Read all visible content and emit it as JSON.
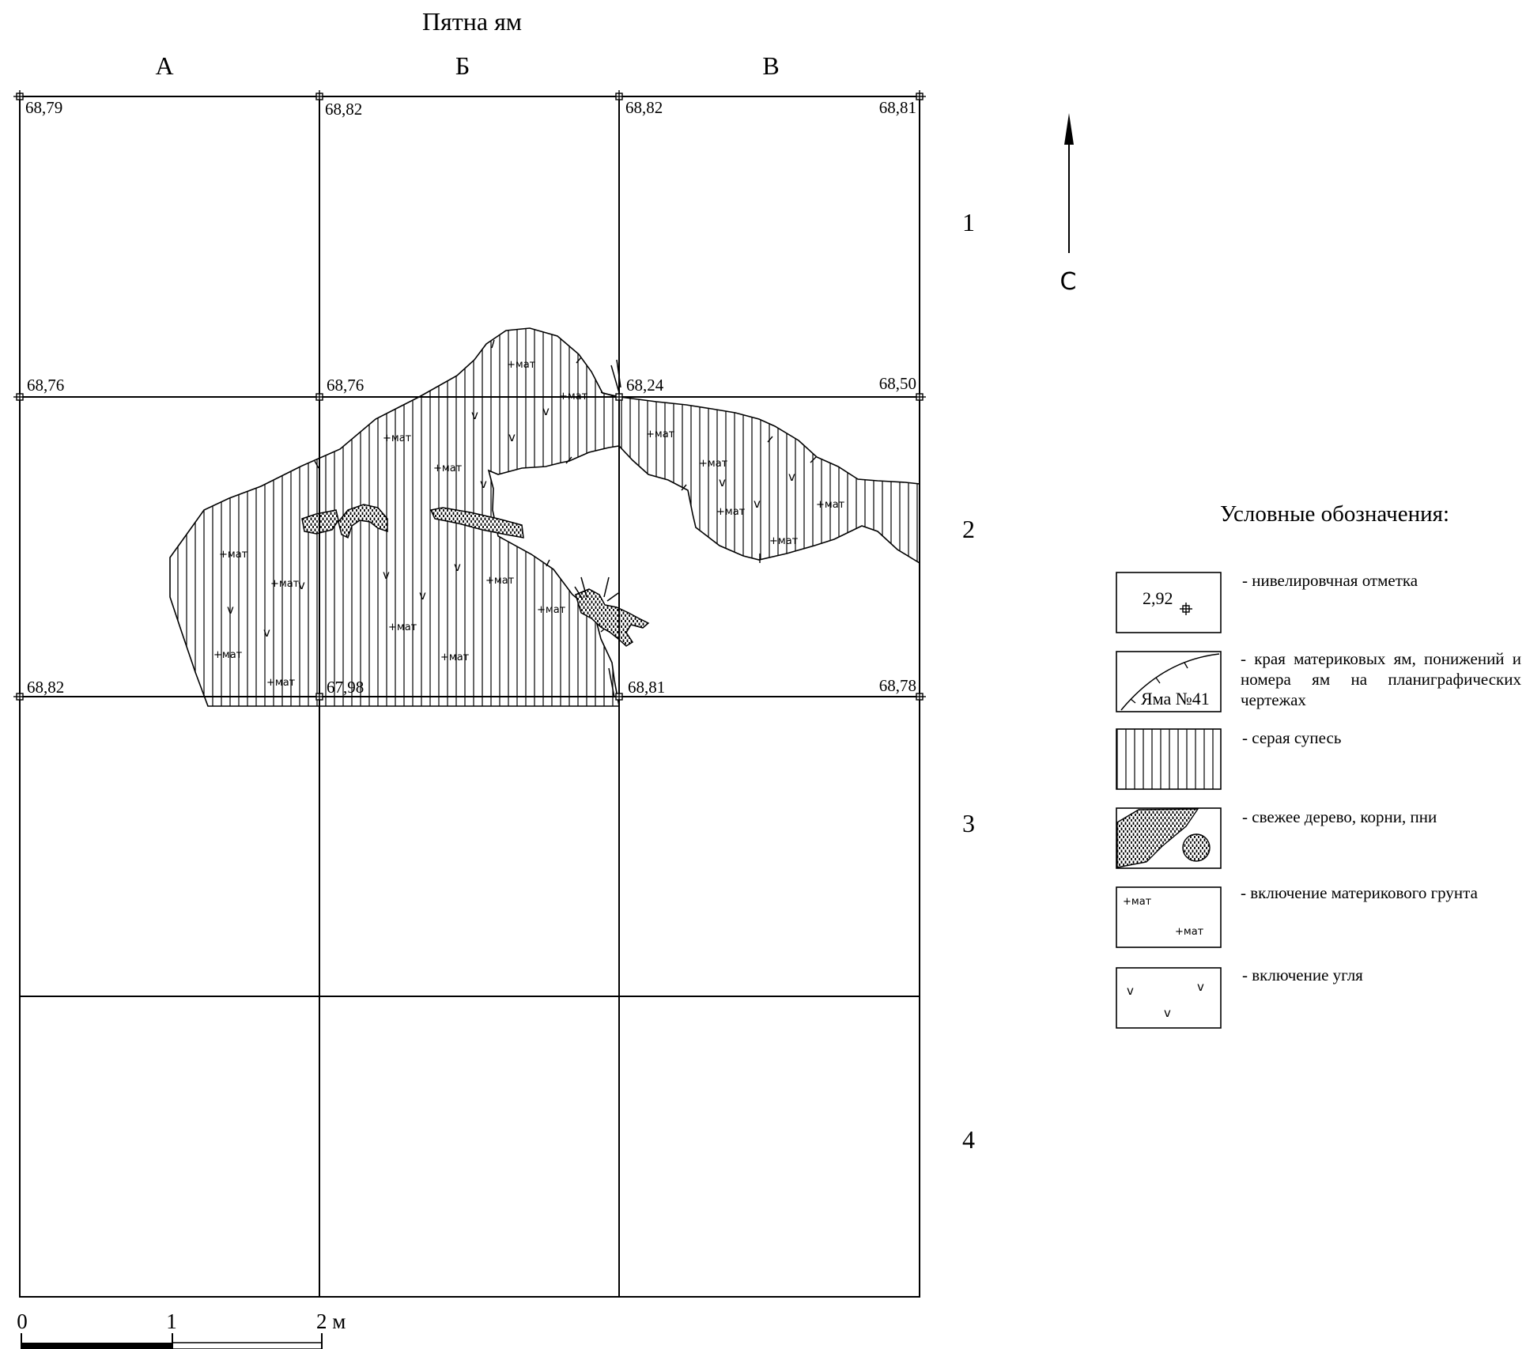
{
  "title": "Пятна ям",
  "columns": [
    "А",
    "Б",
    "В"
  ],
  "rows": [
    "1",
    "2",
    "3",
    "4"
  ],
  "north_label": "С",
  "elevations": {
    "r0c0": "68,79",
    "r0c1": "68,82",
    "r0c2": "68,82",
    "r0c3": "68,81",
    "r1c0": "68,76",
    "r1c1": "68,76",
    "r1c2": "68,24",
    "r1c3": "68,50",
    "r2c0": "68,82",
    "r2c1": "67,98",
    "r2c2": "68,81",
    "r2c3": "68,78"
  },
  "inclusion_label": "мат",
  "charcoal_mark": "v",
  "scale": {
    "zero": "0",
    "one": "1",
    "two": "2 м"
  },
  "legend": {
    "title": "Условные обозначения:",
    "items": [
      {
        "sample": "2,92",
        "text": "- нивелировчная отметка"
      },
      {
        "sample": "Яма №41",
        "text": "- края материковых ям, понижений и номера ям на планиграфических чертежах"
      },
      {
        "sample": "",
        "text": "- серая супесь"
      },
      {
        "sample": "",
        "text": "- свежее дерево, корни, пни"
      },
      {
        "sample": "мат",
        "text": "- включение материкового грунта"
      },
      {
        "sample": "v",
        "text": "- включение угля"
      }
    ]
  },
  "colors": {
    "ink": "#000000",
    "paper": "#ffffff"
  }
}
